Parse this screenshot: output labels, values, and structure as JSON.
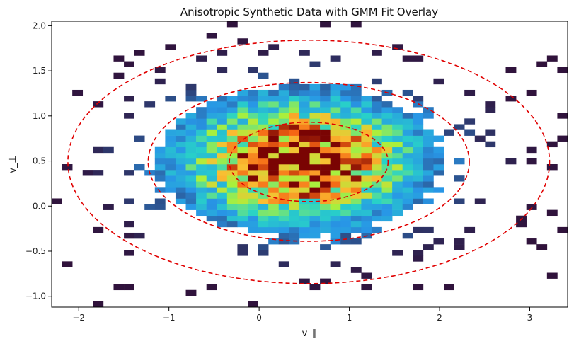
{
  "chart_data": {
    "type": "heatmap",
    "title": "Anisotropic Synthetic Data with GMM Fit Overlay",
    "xlabel": "v_∥",
    "ylabel": "v_⊥",
    "xlim": [
      -2.3,
      3.42
    ],
    "ylim": [
      -1.12,
      2.05
    ],
    "x_ticks": [
      -2,
      -1,
      0,
      1,
      2,
      3
    ],
    "x_tick_labels": [
      "−2",
      "−1",
      "0",
      "1",
      "2",
      "3"
    ],
    "y_ticks": [
      -1.0,
      -0.5,
      0.0,
      0.5,
      1.0,
      1.5,
      2.0
    ],
    "y_tick_labels": [
      "−1.0",
      "−0.5",
      "0.0",
      "0.5",
      "1.0",
      "1.5",
      "2.0"
    ],
    "grid": false,
    "colormap": "turbo",
    "histogram": {
      "bins_x": 50,
      "bins_y": 50,
      "x_range": [
        -2.3,
        3.42
      ],
      "y_range": [
        -1.12,
        2.05
      ],
      "center": [
        0.45,
        0.5
      ],
      "sigma": [
        0.85,
        0.45
      ],
      "peak_count": 12,
      "sparse_threshold": 0.18
    },
    "gmm_overlay": {
      "center": [
        0.55,
        0.49
      ],
      "contours": [
        {
          "semi_axis_x": 0.88,
          "semi_axis_y": 0.44
        },
        {
          "semi_axis_x": 1.78,
          "semi_axis_y": 0.88
        },
        {
          "semi_axis_x": 2.67,
          "semi_axis_y": 1.35
        }
      ],
      "color": "#e00000",
      "style": "dashed"
    }
  }
}
